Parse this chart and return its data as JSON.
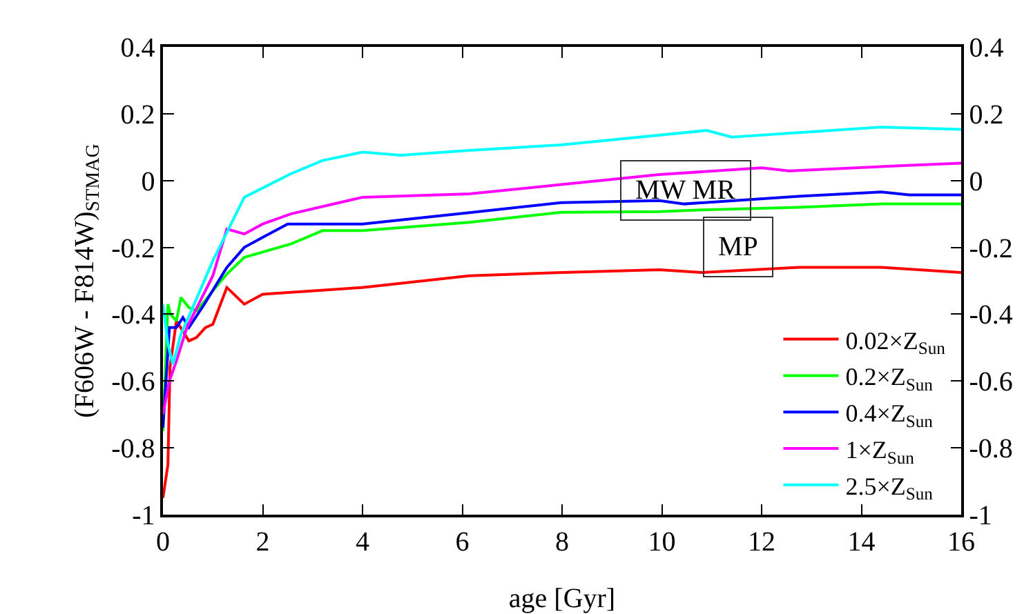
{
  "chart_data": {
    "type": "line",
    "xlabel": "age [Gyr]",
    "ylabel": "(F606W - F814W)$_{STMAG}$",
    "xlim": [
      0,
      16
    ],
    "xticks": [
      0,
      2,
      4,
      6,
      8,
      10,
      12,
      14,
      16
    ],
    "ylim": [
      -1,
      0.4
    ],
    "yticks": [
      -1,
      -0.8,
      -0.6,
      -0.4,
      -0.2,
      0,
      0.2,
      0.4
    ],
    "y2lim": [
      -1,
      0.4
    ],
    "y2ticks": [
      -1,
      -0.8,
      -0.6,
      -0.4,
      -0.2,
      0,
      0.2,
      0.4
    ],
    "grid": false,
    "legend": "bottom right",
    "marker": "none",
    "line_style": "solid",
    "annotations": [
      "MW MR",
      "MP"
    ],
    "series": [
      {
        "name": "0.02×Z$_{Sun}$",
        "color": "#ff0000",
        "x": [
          0,
          0.1,
          0.14,
          0.27,
          0.52,
          0.67,
          0.85,
          1.0,
          1.28,
          1.63,
          2.0,
          4.0,
          6.14,
          8.0,
          9.95,
          10.8,
          12.75,
          14.4,
          16
        ],
        "values": [
          -0.95,
          -0.85,
          -0.56,
          -0.42,
          -0.48,
          -0.47,
          -0.44,
          -0.43,
          -0.32,
          -0.37,
          -0.34,
          -0.32,
          -0.285,
          -0.275,
          -0.267,
          -0.275,
          -0.26,
          -0.26,
          -0.275
        ]
      },
      {
        "name": "0.2×Z$_{Sun}$",
        "color": "#00ff00",
        "x": [
          0,
          0.1,
          0.15,
          0.27,
          0.36,
          0.52,
          0.68,
          1.0,
          1.28,
          1.63,
          2.56,
          3.2,
          4.0,
          6.14,
          7.98,
          9.95,
          10.8,
          12.75,
          14.4,
          16
        ],
        "values": [
          -0.75,
          -0.37,
          -0.4,
          -0.42,
          -0.35,
          -0.38,
          -0.39,
          -0.33,
          -0.28,
          -0.23,
          -0.19,
          -0.15,
          -0.15,
          -0.125,
          -0.095,
          -0.093,
          -0.088,
          -0.08,
          -0.07,
          -0.07
        ]
      },
      {
        "name": "0.4×Z$_{Sun}$",
        "color": "#0000ff",
        "x": [
          0,
          0.13,
          0.27,
          0.4,
          0.52,
          0.83,
          1.28,
          1.63,
          2.0,
          2.5,
          4.0,
          6.14,
          7.98,
          9.95,
          10.45,
          12.75,
          14.4,
          14.96,
          16
        ],
        "values": [
          -0.74,
          -0.44,
          -0.44,
          -0.41,
          -0.44,
          -0.37,
          -0.26,
          -0.2,
          -0.17,
          -0.13,
          -0.13,
          -0.096,
          -0.066,
          -0.06,
          -0.07,
          -0.047,
          -0.034,
          -0.043,
          -0.043
        ]
      },
      {
        "name": "1×Z$_{Sun}$",
        "color": "#ff00ff",
        "x": [
          0,
          0.13,
          0.27,
          0.48,
          1.0,
          1.28,
          1.63,
          2.0,
          2.56,
          4.0,
          6.14,
          7.98,
          9.95,
          12.0,
          12.55,
          14.85,
          16
        ],
        "values": [
          -0.7,
          -0.6,
          -0.54,
          -0.44,
          -0.285,
          -0.145,
          -0.16,
          -0.13,
          -0.1,
          -0.05,
          -0.04,
          -0.012,
          0.018,
          0.038,
          0.029,
          0.045,
          0.052
        ]
      },
      {
        "name": "2.5×Z$_{Sun}$",
        "color": "#00ffff",
        "x": [
          0,
          0.1,
          0.2,
          0.36,
          0.54,
          1.0,
          1.63,
          2.56,
          3.2,
          4.0,
          4.77,
          6.14,
          7.98,
          10.9,
          11.4,
          14.4,
          16
        ],
        "values": [
          -0.37,
          -0.49,
          -0.55,
          -0.46,
          -0.4,
          -0.24,
          -0.05,
          0.02,
          0.06,
          0.085,
          0.076,
          0.09,
          0.107,
          0.15,
          0.13,
          0.16,
          0.153
        ]
      }
    ]
  }
}
